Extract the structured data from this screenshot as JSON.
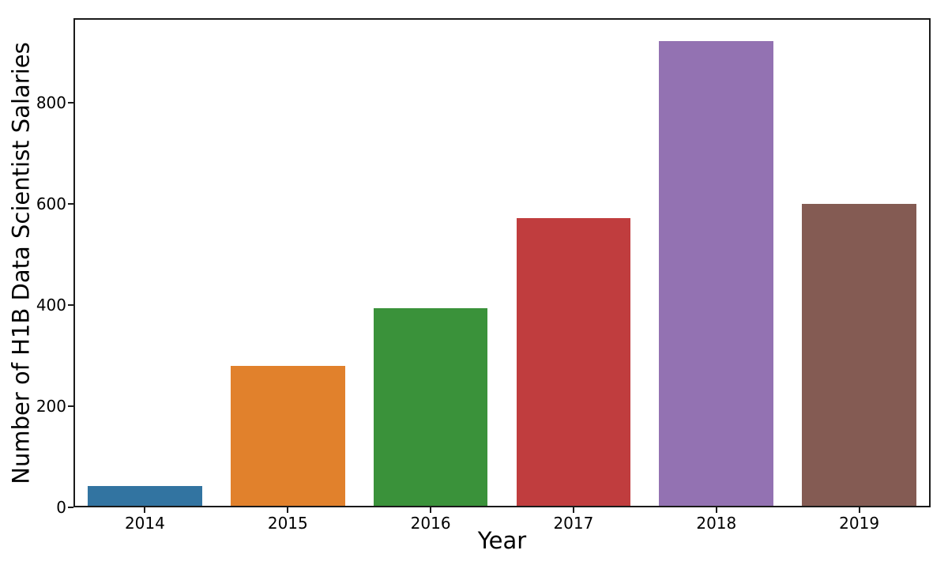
{
  "chart_data": {
    "type": "bar",
    "title": "",
    "xlabel": "Year",
    "ylabel": "Number of H1B Data Scientist Salaries",
    "categories": [
      "2014",
      "2015",
      "2016",
      "2017",
      "2018",
      "2019"
    ],
    "values": [
      42,
      280,
      394,
      573,
      922,
      601
    ],
    "bar_colors": [
      "#3274a1",
      "#e1812c",
      "#3a923a",
      "#c03d3e",
      "#9372b2",
      "#845b53"
    ],
    "yticks": [
      0,
      200,
      400,
      600,
      800
    ],
    "ylim": [
      0,
      968
    ],
    "grid": false,
    "legend_position": "none",
    "background_color": "#ffffff",
    "axis_color": "#1a1a1a"
  }
}
